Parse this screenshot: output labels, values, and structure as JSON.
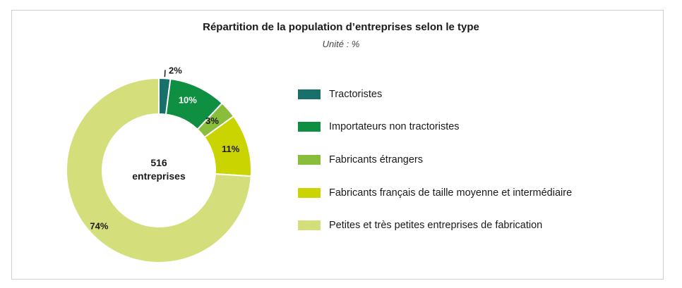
{
  "chart_data": {
    "type": "pie",
    "title": "Répartition de la population d’entreprises selon le type",
    "subtitle": "Unité : %",
    "center_label": {
      "line1": "516",
      "line2": "entreprises"
    },
    "legend_position": "right",
    "slices": [
      {
        "label": "Tractoristes",
        "value": 2,
        "value_label": "2%",
        "color": "#17706a"
      },
      {
        "label": "Importateurs non tractoristes",
        "value": 10,
        "value_label": "10%",
        "color": "#0f8f42"
      },
      {
        "label": "Fabricants étrangers",
        "value": 3,
        "value_label": "3%",
        "color": "#8bbd3c"
      },
      {
        "label": "Fabricants français de taille moyenne et intermédiaire",
        "value": 11,
        "value_label": "11%",
        "color": "#c9d400"
      },
      {
        "label": "Petites et très petites entreprises de fabrication",
        "value": 74,
        "value_label": "74%",
        "color": "#d4df7c"
      }
    ]
  }
}
